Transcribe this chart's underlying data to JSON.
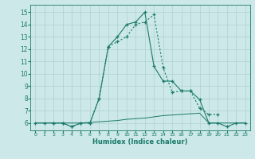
{
  "xlabel": "Humidex (Indice chaleur)",
  "xlim": [
    -0.5,
    23.5
  ],
  "ylim": [
    5.4,
    15.6
  ],
  "yticks": [
    6,
    7,
    8,
    9,
    10,
    11,
    12,
    13,
    14,
    15
  ],
  "xticks": [
    0,
    1,
    2,
    3,
    4,
    5,
    6,
    7,
    8,
    9,
    10,
    11,
    12,
    13,
    14,
    15,
    16,
    17,
    18,
    19,
    20,
    21,
    22,
    23
  ],
  "bg_color": "#cce8e8",
  "grid_color": "#b0d0d0",
  "line_color": "#1a7a6a",
  "line1_x": [
    0,
    1,
    2,
    3,
    4,
    5,
    6,
    7,
    8,
    9,
    10,
    11,
    12,
    13,
    14,
    15,
    16,
    17,
    18,
    19,
    20,
    21,
    22,
    23
  ],
  "line1_y": [
    6.0,
    6.0,
    6.0,
    6.0,
    5.7,
    6.0,
    6.0,
    8.0,
    12.2,
    13.0,
    14.0,
    14.2,
    15.0,
    10.6,
    9.4,
    9.4,
    8.6,
    8.6,
    7.9,
    6.0,
    6.0,
    5.7,
    6.0,
    6.0
  ],
  "line2_x": [
    2,
    3,
    4,
    5,
    6,
    7,
    8,
    9,
    10,
    11,
    12,
    13,
    14,
    15,
    16,
    17,
    18,
    19,
    20
  ],
  "line2_y": [
    6.0,
    6.0,
    5.7,
    6.0,
    6.0,
    8.0,
    12.2,
    12.6,
    13.0,
    14.0,
    14.2,
    14.8,
    10.5,
    8.5,
    8.6,
    8.6,
    7.2,
    6.7,
    6.7
  ],
  "line3_x": [
    0,
    1,
    2,
    3,
    4,
    5,
    6,
    7,
    8,
    9,
    10,
    11,
    12,
    13,
    14,
    15,
    16,
    17,
    18,
    19,
    20,
    21,
    22,
    23
  ],
  "line3_y": [
    6.0,
    6.0,
    6.0,
    6.0,
    6.0,
    6.0,
    6.05,
    6.1,
    6.15,
    6.2,
    6.3,
    6.35,
    6.4,
    6.5,
    6.6,
    6.65,
    6.7,
    6.75,
    6.8,
    6.0,
    6.0,
    6.0,
    6.0,
    6.0
  ]
}
